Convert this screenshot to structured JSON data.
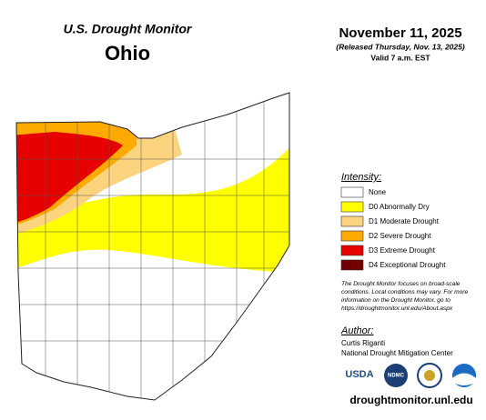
{
  "header": {
    "title": "U.S. Drought Monitor",
    "state": "Ohio",
    "date": "November 11, 2025",
    "released": "(Released Thursday, Nov. 13, 2025)",
    "valid": "Valid 7 a.m. EST"
  },
  "legend": {
    "heading": "Intensity:",
    "items": [
      {
        "label": "None",
        "color": "#ffffff"
      },
      {
        "label": "D0 Abnormally Dry",
        "color": "#ffff00"
      },
      {
        "label": "D1 Moderate Drought",
        "color": "#fcd37f"
      },
      {
        "label": "D2 Severe Drought",
        "color": "#ffaa00"
      },
      {
        "label": "D3 Extreme Drought",
        "color": "#e60000"
      },
      {
        "label": "D4 Exceptional Drought",
        "color": "#730000"
      }
    ]
  },
  "disclaimer": [
    "The Drought Monitor focuses on broad-scale",
    "conditions. Local conditions may vary. For more",
    "information on the Drought Monitor, go to",
    "https://droughtmonitor.unl.edu/About.aspx"
  ],
  "author": {
    "heading": "Author:",
    "name": "Curtis Riganti",
    "org": "National Drought Mitigation Center"
  },
  "logos": [
    "USDA",
    "NDMC"
  ],
  "website": "droughtmonitor.unl.edu"
}
